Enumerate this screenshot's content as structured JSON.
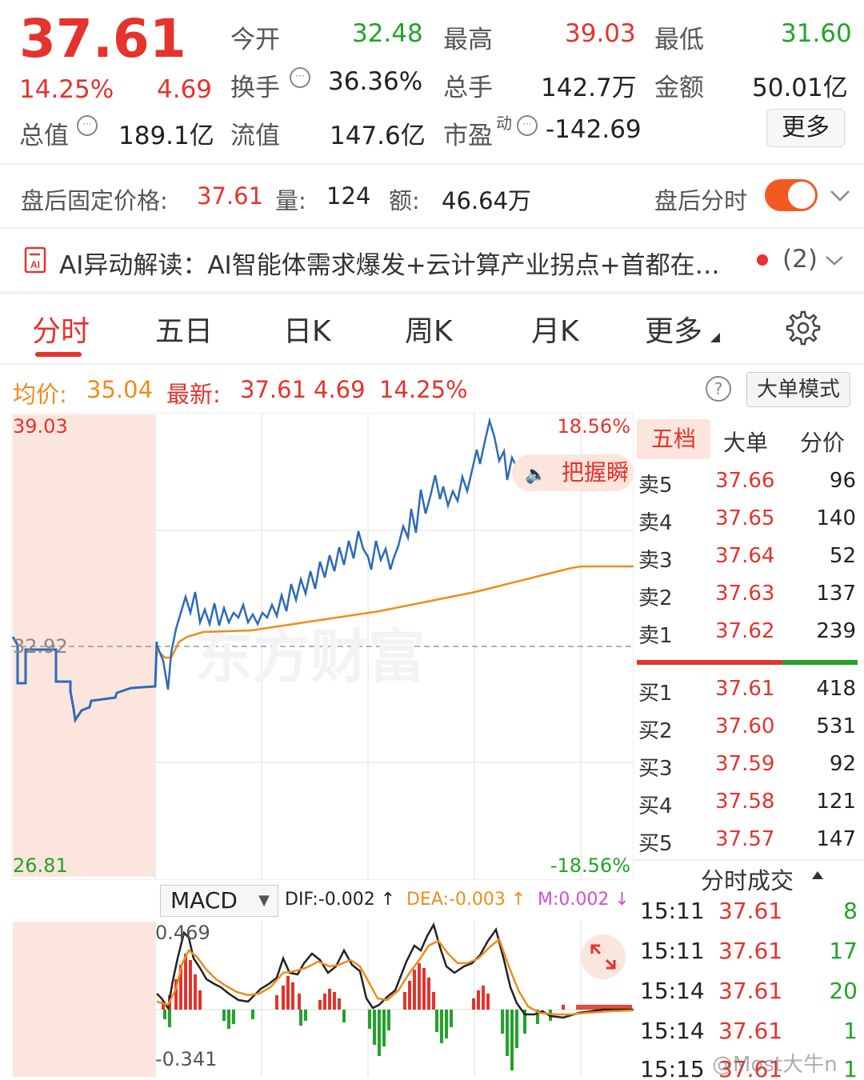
{
  "quote": {
    "price": "37.61",
    "change_pct": "14.25%",
    "change": "4.69",
    "stats": [
      {
        "label": "今开",
        "value": "32.48"
      },
      {
        "label": "最高",
        "value": "39.03"
      },
      {
        "label": "最低",
        "value": "31.60"
      },
      {
        "label": "换手",
        "value": "36.36%"
      },
      {
        "label": "总手",
        "value": "142.7万"
      },
      {
        "label": "金额",
        "value": "50.01亿"
      },
      {
        "label": "总值",
        "value": "189.1亿"
      },
      {
        "label": "流值",
        "value": "147.6亿"
      },
      {
        "label": "市盈",
        "sup": "动",
        "value": "-142.69"
      }
    ],
    "more_label": "更多"
  },
  "after_hours": {
    "label": "盘后固定价格:",
    "price": "37.61",
    "vol_label": "量:",
    "vol": "124",
    "amt_label": "额:",
    "amt": "46.64万",
    "toggle_label": "盘后分时"
  },
  "ai_banner": {
    "text": "AI异动解读：AI智能体需求爆发+云计算产业拐点+首都在…",
    "count": "(2)"
  },
  "tabs": [
    "分时",
    "五日",
    "日K",
    "周K",
    "月K",
    "更多"
  ],
  "chart_header": {
    "avg_label": "均价:",
    "avg": "35.04",
    "latest_label": "最新:",
    "latest": "37.61",
    "change": "4.69",
    "change_pct": "14.25%",
    "mode_button": "大单模式"
  },
  "axes": {
    "y_max": "39.03",
    "y_min": "26.81",
    "pct_max": "18.56%",
    "pct_min": "-18.56%",
    "prev_close": "32.92"
  },
  "watermark": "东方财富",
  "bubble": "把握瞬",
  "orderbook": {
    "tabs": [
      "五档",
      "大单",
      "分价"
    ],
    "asks": [
      {
        "label": "卖5",
        "price": "37.66",
        "vol": "96"
      },
      {
        "label": "卖4",
        "price": "37.65",
        "vol": "140"
      },
      {
        "label": "卖3",
        "price": "37.64",
        "vol": "52"
      },
      {
        "label": "卖2",
        "price": "37.63",
        "vol": "137"
      },
      {
        "label": "卖1",
        "price": "37.62",
        "vol": "239"
      }
    ],
    "bids": [
      {
        "label": "买1",
        "price": "37.61",
        "vol": "418"
      },
      {
        "label": "买2",
        "price": "37.60",
        "vol": "531"
      },
      {
        "label": "买3",
        "price": "37.59",
        "vol": "92"
      },
      {
        "label": "买4",
        "price": "37.58",
        "vol": "121"
      },
      {
        "label": "买5",
        "price": "37.57",
        "vol": "147"
      }
    ]
  },
  "trades": {
    "title": "分时成交",
    "rows": [
      {
        "time": "15:11",
        "price": "37.61",
        "vol": "8"
      },
      {
        "time": "15:11",
        "price": "37.61",
        "vol": "17"
      },
      {
        "time": "15:14",
        "price": "37.61",
        "vol": "20"
      },
      {
        "time": "15:14",
        "price": "37.61",
        "vol": "1"
      },
      {
        "time": "15:15",
        "price": "37.61",
        "vol": "1"
      }
    ]
  },
  "macd": {
    "selector": "MACD",
    "dif": "DIF:-0.002 ↑",
    "dea": "DEA:-0.003 ↑",
    "m": "M:0.002 ↓",
    "y_max": "0.469",
    "y_min": "-0.341"
  },
  "credit": "@Most大牛n",
  "colors": {
    "up": "#e5332d",
    "down": "#22a32a",
    "avg_line": "#ef8c1c",
    "price_line": "#2e6bb8"
  }
}
